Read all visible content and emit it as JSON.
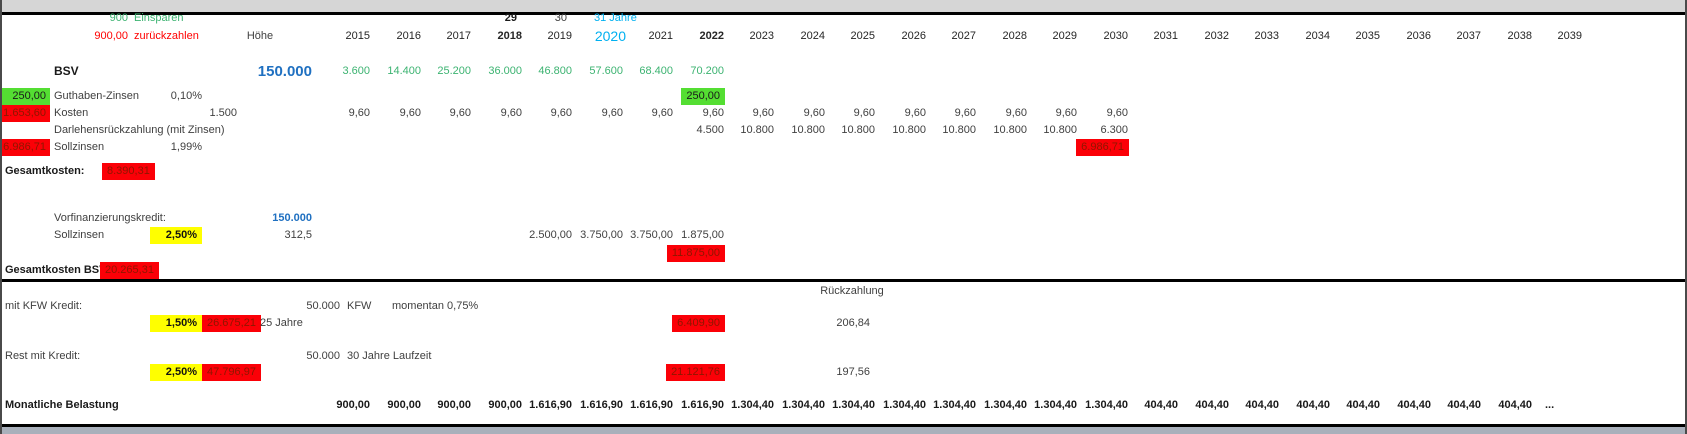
{
  "ann": {
    "einsparen_value": "900",
    "einsparen_label": "Einsparen",
    "zurueck_value": "900,00",
    "zurueck_label": "zurückzahlen",
    "counter_2018": "29",
    "counter_2019": "30",
    "counter_2020": "31 Jahre",
    "hoehe": "Höhe"
  },
  "years": {
    "start": 2015,
    "labels": [
      "2015",
      "2016",
      "2017",
      "2018",
      "2019",
      "2020",
      "2021",
      "2022",
      "2023",
      "2024",
      "2025",
      "2026",
      "2027",
      "2028",
      "2029",
      "2030",
      "2031",
      "2032",
      "2033",
      "2034",
      "2035",
      "2036",
      "2037",
      "2038",
      "2039"
    ],
    "bold": [
      2018,
      2022
    ],
    "blue": 2020
  },
  "rows": {
    "bsv": {
      "label": "BSV",
      "hoehe": "150.000",
      "cells": {
        "start": 2015,
        "values": [
          "3.600",
          "14.400",
          "25.200",
          "36.000",
          "46.800",
          "57.600",
          "68.400",
          "70.200"
        ]
      }
    },
    "guthaben": {
      "left": "250,00",
      "label": "Guthaben-Zinsen",
      "rate": "0,10%",
      "highlight": "250,00"
    },
    "kosten": {
      "left": "1.653,60",
      "label": "Kosten",
      "einmal": "1.500",
      "cells": {
        "start": 2015,
        "values": [
          "9,60",
          "9,60",
          "9,60",
          "9,60",
          "9,60",
          "9,60",
          "9,60",
          "9,60",
          "9,60",
          "9,60",
          "9,60",
          "9,60",
          "9,60",
          "9,60",
          "9,60",
          "9,60"
        ]
      }
    },
    "darlehen": {
      "label": "Darlehensrückzahlung (mit Zinsen)",
      "cells": {
        "start": 2022,
        "values": [
          "4.500",
          "10.800",
          "10.800",
          "10.800",
          "10.800",
          "10.800",
          "10.800",
          "10.800",
          "6.300"
        ]
      }
    },
    "sollzinsen": {
      "left": "6.986,71",
      "label": "Sollzinsen",
      "rate": "1,99%",
      "highlight": "6.986,71"
    },
    "gesamtkosten": {
      "label": "Gesamtkosten:",
      "value": "8.390,31"
    },
    "vorfinanzierung": {
      "label": "Vorfinanzierungskredit:",
      "hoehe": "150.000"
    },
    "sollzinsen2": {
      "label": "Sollzinsen",
      "rate": "2,50%",
      "hoehe": "312,5",
      "cells": {
        "start": 2019,
        "values": [
          "2.500,00",
          "3.750,00",
          "3.750,00",
          "1.875,00"
        ]
      },
      "total": "11.875,00"
    },
    "gesamtkosten_bsv": {
      "label": "Gesamtkosten BSV:",
      "value": "20.265,31"
    },
    "rueckzahlung_header": "Rückzahlung",
    "kfw": {
      "label": "mit KFW Kredit:",
      "amount": "50.000",
      "unit": "KFW",
      "note": "momentan 0,75%",
      "rate": "1,50%",
      "total": "26.675,21",
      "term": "25 Jahre",
      "cell2022": "6.409,90",
      "monthly": "206,84"
    },
    "rest": {
      "label": "Rest mit Kredit:",
      "amount": "50.000",
      "note": "30 Jahre Laufzeit",
      "rate": "2,50%",
      "total": "47.796,97",
      "cell2022": "21.121,76",
      "monthly": "197,56"
    },
    "monatlich": {
      "label": "Monatliche Belastung",
      "cells": {
        "start": 2015,
        "values": [
          "900,00",
          "900,00",
          "900,00",
          "900,00",
          "1.616,90",
          "1.616,90",
          "1.616,90",
          "1.616,90",
          "1.304,40",
          "1.304,40",
          "1.304,40",
          "1.304,40",
          "1.304,40",
          "1.304,40",
          "1.304,40",
          "1.304,40",
          "404,40",
          "404,40",
          "404,40",
          "404,40",
          "404,40",
          "404,40",
          "404,40",
          "404,40"
        ],
        "ellipsis": "..."
      }
    }
  },
  "colors": {
    "green_text": "#3CB371",
    "red_text": "#FF0000",
    "blue_bold": "#1F70C1",
    "light_blue": "#00B0F0",
    "green_bg": "#54DE32",
    "red_bg": "#FB0007",
    "red_bg_text": "#8E1600",
    "yellow_bg": "#FFFF00",
    "top_bar": "#d6d6d6",
    "bottom_bar": "#a9b0bb"
  }
}
